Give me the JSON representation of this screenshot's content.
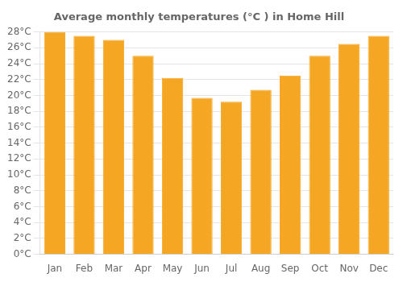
{
  "chart_data": {
    "type": "bar",
    "title": "Average monthly temperatures (°C ) in Home Hill",
    "categories": [
      "Jan",
      "Feb",
      "Mar",
      "Apr",
      "May",
      "Jun",
      "Jul",
      "Aug",
      "Sep",
      "Oct",
      "Nov",
      "Dec"
    ],
    "values": [
      28.0,
      27.5,
      27.0,
      25.0,
      22.2,
      19.7,
      19.2,
      20.7,
      22.5,
      25.0,
      26.5,
      27.5
    ],
    "color": "#F5A623",
    "ylim": [
      0,
      28
    ],
    "yticks": [
      {
        "value": 0,
        "label": "0°C"
      },
      {
        "value": 2,
        "label": "2°C"
      },
      {
        "value": 4,
        "label": "4°C"
      },
      {
        "value": 6,
        "label": "6°C"
      },
      {
        "value": 8,
        "label": "8°C"
      },
      {
        "value": 10,
        "label": "10°C"
      },
      {
        "value": 12,
        "label": "12°C"
      },
      {
        "value": 14,
        "label": "14°C"
      },
      {
        "value": 16,
        "label": "16°C"
      },
      {
        "value": 18,
        "label": "18°C"
      },
      {
        "value": 20,
        "label": "20°C"
      },
      {
        "value": 22,
        "label": "22°C"
      },
      {
        "value": 24,
        "label": "24°C"
      },
      {
        "value": 26,
        "label": "26°C"
      },
      {
        "value": 28,
        "label": "28°C"
      }
    ],
    "grid": true
  }
}
